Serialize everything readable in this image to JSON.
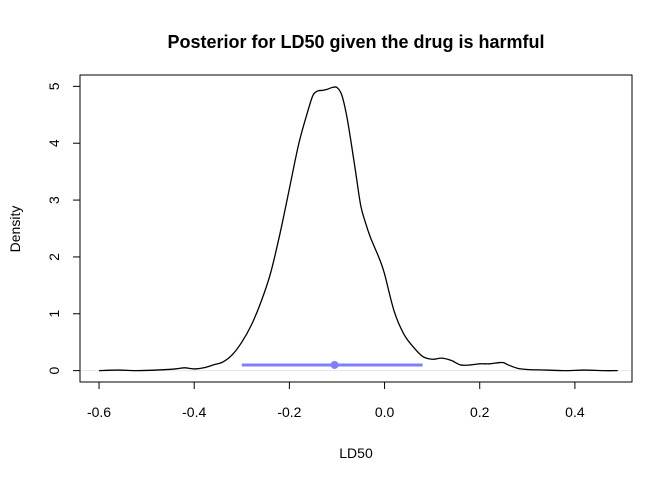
{
  "chart_data": {
    "type": "line",
    "title": "Posterior for LD50 given the drug is harmful",
    "xlabel": "LD50",
    "ylabel": "Density",
    "xlim": [
      -0.64,
      0.52
    ],
    "ylim": [
      -0.2,
      5.2
    ],
    "x_ticks": [
      -0.6,
      -0.4,
      -0.2,
      0.0,
      0.2,
      0.4
    ],
    "x_tick_labels": [
      "-0.6",
      "-0.4",
      "-0.2",
      "0.0",
      "0.2",
      "0.4"
    ],
    "y_ticks": [
      0,
      1,
      2,
      3,
      4,
      5
    ],
    "y_tick_labels": [
      "0",
      "1",
      "2",
      "3",
      "4",
      "5"
    ],
    "grid": false,
    "series": [
      {
        "color": "#000000",
        "x": [
          -0.6,
          -0.56,
          -0.52,
          -0.48,
          -0.44,
          -0.42,
          -0.4,
          -0.38,
          -0.36,
          -0.34,
          -0.32,
          -0.3,
          -0.28,
          -0.26,
          -0.24,
          -0.22,
          -0.2,
          -0.18,
          -0.16,
          -0.15,
          -0.14,
          -0.13,
          -0.12,
          -0.11,
          -0.1,
          -0.09,
          -0.08,
          -0.07,
          -0.06,
          -0.05,
          -0.04,
          -0.03,
          -0.02,
          -0.01,
          0.0,
          0.02,
          0.04,
          0.06,
          0.08,
          0.1,
          0.12,
          0.14,
          0.16,
          0.18,
          0.2,
          0.22,
          0.24,
          0.25,
          0.26,
          0.28,
          0.3,
          0.34,
          0.38,
          0.42,
          0.46,
          0.49
        ],
        "y": [
          0.0,
          0.01,
          0.0,
          0.01,
          0.03,
          0.05,
          0.03,
          0.05,
          0.1,
          0.15,
          0.28,
          0.5,
          0.8,
          1.2,
          1.7,
          2.4,
          3.2,
          4.0,
          4.6,
          4.85,
          4.92,
          4.93,
          4.95,
          4.98,
          4.98,
          4.85,
          4.5,
          4.0,
          3.45,
          2.9,
          2.6,
          2.35,
          2.15,
          1.95,
          1.7,
          1.05,
          0.65,
          0.42,
          0.25,
          0.2,
          0.22,
          0.18,
          0.1,
          0.1,
          0.12,
          0.12,
          0.14,
          0.14,
          0.1,
          0.04,
          0.02,
          0.01,
          0.0,
          0.01,
          0.0,
          0.0
        ]
      }
    ],
    "interval": {
      "color": "#7f7fff",
      "lower": -0.3,
      "upper": 0.08,
      "point": -0.105,
      "y": 0.1
    },
    "baseline": {
      "y": 0,
      "color": "#e6e6e6"
    }
  }
}
